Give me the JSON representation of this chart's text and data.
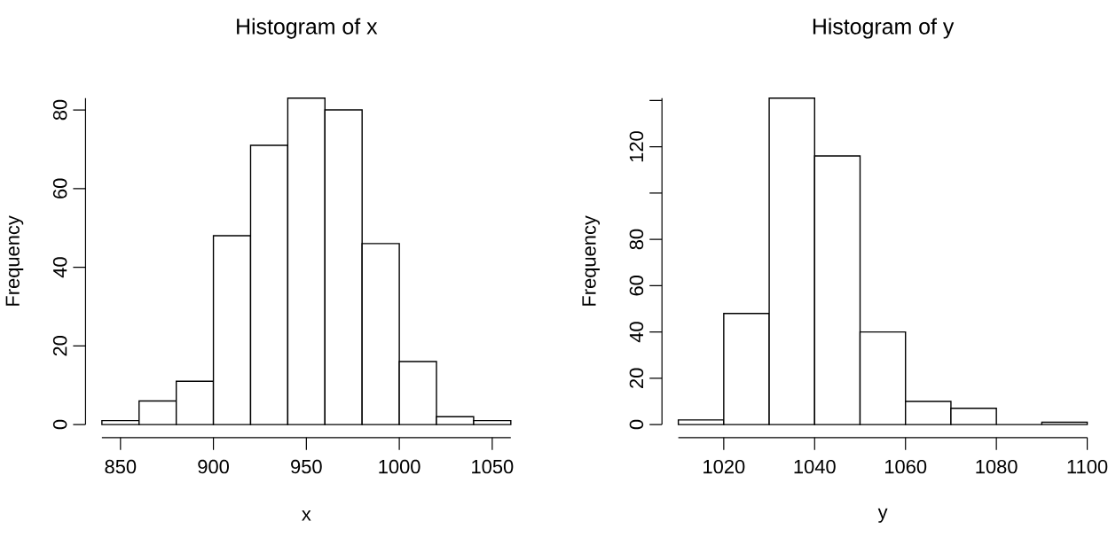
{
  "chart_data": [
    {
      "type": "histogram",
      "title": "Histogram of x",
      "xlabel": "x",
      "ylabel": "Frequency",
      "color": "#ffffff",
      "bins": [
        840,
        860,
        880,
        900,
        920,
        940,
        960,
        980,
        1000,
        1020,
        1040,
        1060
      ],
      "values": [
        1,
        6,
        11,
        48,
        71,
        83,
        80,
        46,
        16,
        2,
        1
      ],
      "xlim": [
        840,
        1060
      ],
      "ylim": [
        0,
        83
      ],
      "xticks": [
        850,
        900,
        950,
        1000,
        1050
      ],
      "yticks": [
        0,
        20,
        40,
        60,
        80
      ],
      "grid": false
    },
    {
      "type": "histogram",
      "title": "Histogram of y",
      "xlabel": "y",
      "ylabel": "Frequency",
      "color": "#ffffff",
      "bins": [
        1010,
        1020,
        1030,
        1040,
        1050,
        1060,
        1070,
        1080,
        1090,
        1100
      ],
      "values": [
        2,
        48,
        141,
        116,
        40,
        10,
        7,
        0,
        1
      ],
      "xlim": [
        1010,
        1100
      ],
      "ylim": [
        0,
        141
      ],
      "xticks": [
        1020,
        1040,
        1060,
        1080,
        1100
      ],
      "yticks": [
        0,
        20,
        40,
        60,
        80,
        {
          "value": 100,
          "label": null
        },
        120,
        {
          "value": 140,
          "label": null
        }
      ],
      "grid": false
    }
  ]
}
